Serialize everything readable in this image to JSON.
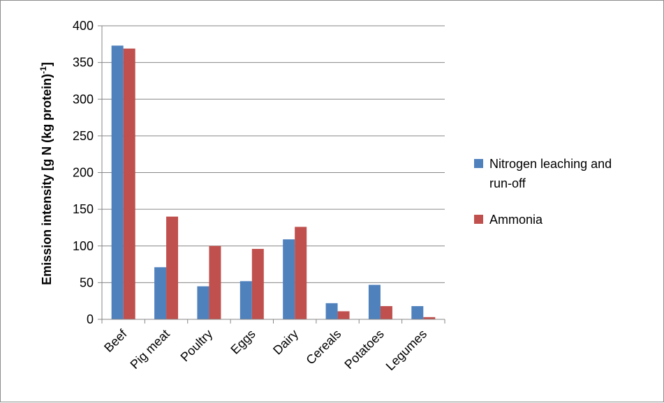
{
  "chart_data": {
    "type": "bar",
    "categories": [
      "Beef",
      "Pig meat",
      "Poultry",
      "Eggs",
      "Dairy",
      "Cereals",
      "Potatoes",
      "Legumes"
    ],
    "series": [
      {
        "name": "Nitrogen leaching and run-off",
        "color": "#4f81bd",
        "values": [
          373,
          71,
          45,
          52,
          109,
          22,
          47,
          18
        ]
      },
      {
        "name": "Ammonia",
        "color": "#c0504d",
        "values": [
          369,
          140,
          100,
          96,
          126,
          11,
          18,
          3
        ]
      }
    ],
    "ylabel": "Emission intensity [g N (kg protein)",
    "ylabel_superscript": "-1",
    "ylabel_suffix": "]",
    "ylim": [
      0,
      400
    ],
    "yticks": [
      0,
      50,
      100,
      150,
      200,
      250,
      300,
      350,
      400
    ],
    "grid": true,
    "legend_position": "right",
    "legend_lines": [
      [
        "Nitrogen leaching and",
        "run-off"
      ],
      [
        "Ammonia"
      ]
    ]
  }
}
